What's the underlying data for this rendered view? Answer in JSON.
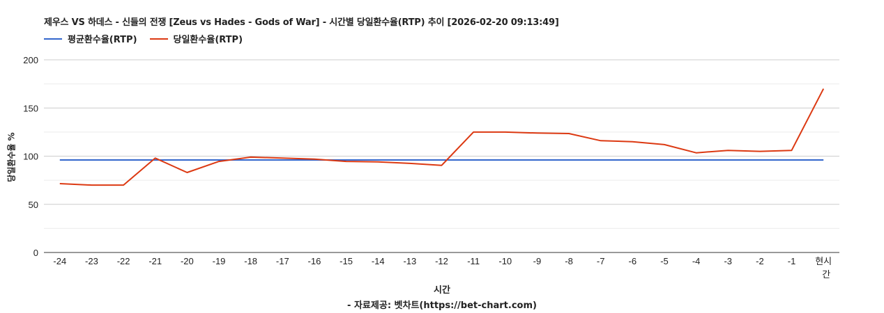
{
  "title": "제우스 VS 하데스 - 신들의 전쟁 [Zeus vs Hades - Gods of War] - 시간별 당일환수율(RTP) 추이 [2026-02-20 09:13:49]",
  "legend": [
    {
      "label": "평균환수율(RTP)",
      "color": "#3366cc"
    },
    {
      "label": "당일환수율(RTP)",
      "color": "#dc3912"
    }
  ],
  "yaxis_label": "당일환수율 %",
  "xaxis_label": "시간",
  "credit": "- 자료제공: 벳차트(https://bet-chart.com)",
  "chart_data": {
    "type": "line",
    "title": "제우스 VS 하데스 - 신들의 전쟁 [Zeus vs Hades - Gods of War] - 시간별 당일환수율(RTP) 추이 [2026-02-20 09:13:49]",
    "xlabel": "시간",
    "ylabel": "당일환수율 %",
    "ylim": [
      0,
      200
    ],
    "yticks": [
      0,
      50,
      100,
      150,
      200
    ],
    "minor_grid_step": 25,
    "grid": true,
    "legend_position": "top",
    "categories": [
      "-24",
      "-23",
      "-22",
      "-21",
      "-20",
      "-19",
      "-18",
      "-17",
      "-16",
      "-15",
      "-14",
      "-13",
      "-12",
      "-11",
      "-10",
      "-9",
      "-8",
      "-7",
      "-6",
      "-5",
      "-4",
      "-3",
      "-2",
      "-1",
      "현시간"
    ],
    "series": [
      {
        "name": "평균환수율(RTP)",
        "color": "#3366cc",
        "values": [
          96,
          96,
          96,
          96,
          96,
          96,
          96,
          96,
          96,
          96,
          96,
          96,
          96,
          96,
          96,
          96,
          96,
          96,
          96,
          96,
          96,
          96,
          96,
          96,
          96
        ]
      },
      {
        "name": "당일환수율(RTP)",
        "color": "#dc3912",
        "values": [
          71.5,
          70,
          70,
          98,
          83,
          94.5,
          99,
          98,
          97,
          94.5,
          94,
          92.5,
          90.5,
          125,
          125,
          124,
          123.5,
          116,
          115,
          112,
          103.5,
          106,
          105,
          106,
          170
        ]
      }
    ]
  }
}
